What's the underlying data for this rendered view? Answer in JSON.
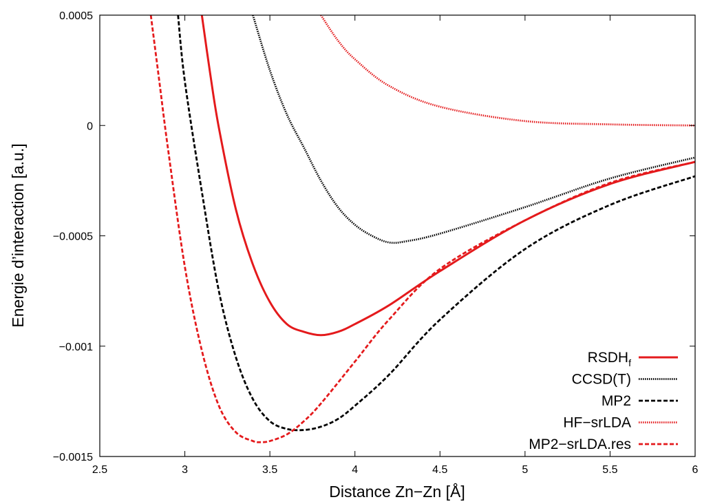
{
  "chart_data": {
    "type": "line",
    "xlabel": "Distance Zn−Zn [Å]",
    "ylabel": "Energie d’interaction [a.u.]",
    "xlim": [
      2.5,
      6
    ],
    "ylim": [
      -0.0015,
      0.0005
    ],
    "xticks": [
      2.5,
      3,
      3.5,
      4,
      4.5,
      5,
      5.5,
      6
    ],
    "xtick_labels": [
      "2.5",
      "3",
      "3.5",
      "4",
      "4.5",
      "5",
      "5.5",
      "6"
    ],
    "yticks": [
      -0.0015,
      -0.001,
      -0.0005,
      0,
      0.0005
    ],
    "ytick_labels": [
      "−0.0015",
      "−0.001",
      "−0.0005",
      "0",
      "0.0005"
    ],
    "grid": false,
    "legend_position": "bottom-right",
    "series": [
      {
        "name": "RSDH",
        "name_subscript": "f",
        "color": "#e41a1c",
        "style": "solid",
        "x": [
          3.1,
          3.15,
          3.2,
          3.3,
          3.4,
          3.5,
          3.6,
          3.7,
          3.8,
          3.9,
          4.0,
          4.2,
          4.5,
          5.0,
          5.5,
          6.0
        ],
        "y": [
          0.0005,
          0.00023,
          -1e-05,
          -0.00038,
          -0.00063,
          -0.0008,
          -0.0009,
          -0.000935,
          -0.00095,
          -0.000935,
          -0.0009,
          -0.000815,
          -0.00066,
          -0.00043,
          -0.000265,
          -0.000165
        ]
      },
      {
        "name": "CCSD(T)",
        "name_subscript": "",
        "color": "#000000",
        "style": "dotted",
        "x": [
          3.4,
          3.5,
          3.6,
          3.7,
          3.8,
          3.9,
          4.0,
          4.1,
          4.2,
          4.3,
          4.5,
          5.0,
          5.5,
          6.0
        ],
        "y": [
          0.0005,
          0.00025,
          5e-05,
          -0.0001,
          -0.00025,
          -0.00037,
          -0.00045,
          -0.0005,
          -0.00053,
          -0.000525,
          -0.00049,
          -0.00037,
          -0.00024,
          -0.000145
        ]
      },
      {
        "name": "MP2",
        "name_subscript": "",
        "color": "#000000",
        "style": "dashed",
        "x": [
          2.96,
          3.0,
          3.1,
          3.2,
          3.3,
          3.4,
          3.5,
          3.6,
          3.7,
          3.8,
          3.9,
          4.0,
          4.2,
          4.5,
          5.0,
          5.5,
          6.0
        ],
        "y": [
          0.0005,
          0.0002,
          -0.0003,
          -0.00075,
          -0.00105,
          -0.00124,
          -0.00134,
          -0.001375,
          -0.00138,
          -0.001365,
          -0.00133,
          -0.00127,
          -0.00113,
          -0.00088,
          -0.00056,
          -0.00036,
          -0.00023
        ]
      },
      {
        "name": "HF−srLDA",
        "name_subscript": "",
        "color": "#e41a1c",
        "style": "dotted",
        "x": [
          3.8,
          3.9,
          4.0,
          4.2,
          4.5,
          5.0,
          5.5,
          6.0
        ],
        "y": [
          0.0005,
          0.000385,
          0.0003,
          0.00018,
          8.5e-05,
          2e-05,
          5e-06,
          0.0
        ]
      },
      {
        "name": "MP2−srLDA.res",
        "name_subscript": "",
        "color": "#e41a1c",
        "style": "dashed",
        "x": [
          2.8,
          2.85,
          2.9,
          3.0,
          3.1,
          3.2,
          3.3,
          3.4,
          3.45,
          3.5,
          3.6,
          3.7,
          3.8,
          4.0,
          4.2,
          4.5,
          5.0,
          5.5,
          6.0
        ],
        "y": [
          0.0005,
          0.0002,
          -0.0001,
          -0.00064,
          -0.00102,
          -0.00127,
          -0.00139,
          -0.00143,
          -0.001435,
          -0.00143,
          -0.0014,
          -0.00134,
          -0.00126,
          -0.00107,
          -0.00088,
          -0.00065,
          -0.00043,
          -0.00026,
          -0.000165
        ]
      }
    ]
  }
}
